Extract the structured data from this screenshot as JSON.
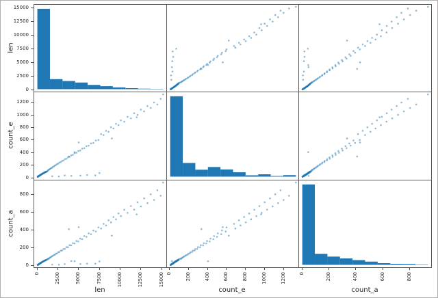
{
  "figure": {
    "background": "#ffffff",
    "outer_border_color": "#b0b0b0",
    "axis_line_color": "#595959",
    "tick_color": "#4d4d4d",
    "tick_label_color": "#262626",
    "bar_color": "#1f77b4",
    "point_color": "#1f77b4",
    "point_alpha": 0.5
  },
  "chart_data": {
    "type": "scatter_matrix",
    "diagonal": "hist",
    "variables": [
      {
        "name": "len",
        "min": -380,
        "max": 15580,
        "data_max": 15200,
        "ticks": [
          0,
          2500,
          5000,
          7500,
          10000,
          12500,
          15000
        ],
        "hist_counts": [
          945,
          118,
          96,
          78,
          50,
          35,
          21,
          12,
          6,
          4
        ]
      },
      {
        "name": "count_e",
        "min": -34,
        "max": 1364,
        "data_max": 1330,
        "ticks": [
          0,
          200,
          400,
          600,
          800,
          1000,
          1200
        ],
        "hist_counts": [
          950,
          162,
          82,
          114,
          85,
          52,
          16,
          28,
          8,
          18
        ]
      },
      {
        "name": "count_a",
        "min": -24,
        "max": 964,
        "data_max": 940,
        "ticks": [
          0,
          200,
          400,
          600,
          800
        ],
        "hist_counts": [
          955,
          130,
          98,
          76,
          56,
          38,
          20,
          12,
          11,
          5
        ]
      }
    ],
    "points": [
      [
        25,
        3,
        1
      ],
      [
        40,
        5,
        2
      ],
      [
        60,
        4,
        3
      ],
      [
        75,
        8,
        5
      ],
      [
        90,
        7,
        6
      ],
      [
        110,
        11,
        7
      ],
      [
        130,
        10,
        8
      ],
      [
        150,
        15,
        9
      ],
      [
        165,
        13,
        11
      ],
      [
        185,
        18,
        12
      ],
      [
        200,
        16,
        13
      ],
      [
        220,
        21,
        14
      ],
      [
        240,
        19,
        16
      ],
      [
        260,
        24,
        15
      ],
      [
        280,
        22,
        18
      ],
      [
        300,
        28,
        17
      ],
      [
        320,
        25,
        21
      ],
      [
        345,
        32,
        20
      ],
      [
        365,
        29,
        24
      ],
      [
        390,
        36,
        23
      ],
      [
        410,
        33,
        27
      ],
      [
        435,
        40,
        26
      ],
      [
        460,
        37,
        30
      ],
      [
        485,
        44,
        29
      ],
      [
        510,
        42,
        33
      ],
      [
        535,
        49,
        32
      ],
      [
        560,
        46,
        36
      ],
      [
        590,
        53,
        35
      ],
      [
        615,
        50,
        39
      ],
      [
        640,
        57,
        38
      ],
      [
        670,
        54,
        42
      ],
      [
        700,
        61,
        41
      ],
      [
        730,
        58,
        45
      ],
      [
        760,
        66,
        44
      ],
      [
        790,
        63,
        48
      ],
      [
        825,
        70,
        47
      ],
      [
        855,
        67,
        51
      ],
      [
        890,
        75,
        50
      ],
      [
        925,
        72,
        54
      ],
      [
        960,
        80,
        53
      ],
      [
        1000,
        77,
        58
      ],
      [
        1040,
        85,
        57
      ],
      [
        1085,
        82,
        61
      ],
      [
        1130,
        91,
        60
      ],
      [
        1180,
        88,
        65
      ],
      [
        1240,
        97,
        68
      ],
      [
        55,
        6,
        4
      ],
      [
        95,
        9,
        5
      ],
      [
        145,
        12,
        10
      ],
      [
        210,
        20,
        12
      ],
      [
        275,
        26,
        16
      ],
      [
        340,
        30,
        22
      ],
      [
        430,
        38,
        25
      ],
      [
        520,
        45,
        31
      ],
      [
        610,
        52,
        37
      ],
      [
        720,
        60,
        43
      ],
      [
        840,
        72,
        49
      ],
      [
        980,
        84,
        55
      ],
      [
        1300,
        108,
        75
      ],
      [
        1380,
        116,
        72
      ],
      [
        1460,
        124,
        82
      ],
      [
        1550,
        130,
        88
      ],
      [
        1650,
        142,
        92
      ],
      [
        1760,
        148,
        101
      ],
      [
        1870,
        162,
        106
      ],
      [
        1990,
        170,
        115
      ],
      [
        2110,
        184,
        119
      ],
      [
        2240,
        192,
        130
      ],
      [
        2380,
        207,
        134
      ],
      [
        2520,
        215,
        147
      ],
      [
        2670,
        232,
        150
      ],
      [
        2830,
        240,
        165
      ],
      [
        2990,
        258,
        167
      ],
      [
        3160,
        266,
        184
      ],
      [
        3330,
        286,
        185
      ],
      [
        3510,
        294,
        205
      ],
      [
        3700,
        316,
        204
      ],
      [
        3890,
        324,
        227
      ],
      [
        4090,
        348,
        225
      ],
      [
        4290,
        356,
        250
      ],
      [
        4500,
        382,
        247
      ],
      [
        4720,
        390,
        275
      ],
      [
        4950,
        418,
        270
      ],
      [
        5180,
        426,
        302
      ],
      [
        5420,
        456,
        296
      ],
      [
        5670,
        464,
        331
      ],
      [
        5930,
        496,
        323
      ],
      [
        6200,
        504,
        362
      ],
      [
        6480,
        540,
        352
      ],
      [
        6770,
        548,
        395
      ],
      [
        7070,
        588,
        383
      ],
      [
        7380,
        596,
        430
      ],
      [
        7700,
        690,
        417
      ],
      [
        8000,
        676,
        470
      ],
      [
        8300,
        744,
        452
      ],
      [
        8600,
        728,
        510
      ],
      [
        8900,
        800,
        487
      ],
      [
        9200,
        782,
        548
      ],
      [
        9500,
        856,
        522
      ],
      [
        9800,
        836,
        588
      ],
      [
        10100,
        912,
        558
      ],
      [
        10500,
        890,
        630
      ],
      [
        10900,
        968,
        595
      ],
      [
        11300,
        944,
        672
      ],
      [
        11700,
        1026,
        632
      ],
      [
        12100,
        1000,
        716
      ],
      [
        12500,
        1084,
        668
      ],
      [
        12900,
        1056,
        760
      ],
      [
        13300,
        1142,
        706
      ],
      [
        13700,
        1112,
        806
      ],
      [
        14100,
        1200,
        742
      ],
      [
        14500,
        1168,
        852
      ],
      [
        14900,
        1258,
        790
      ],
      [
        15200,
        1330,
        940
      ],
      [
        1800,
        12,
        6
      ],
      [
        2600,
        9,
        5
      ],
      [
        3300,
        24,
        12
      ],
      [
        4100,
        18,
        47
      ],
      [
        5200,
        22,
        13
      ],
      [
        6000,
        32,
        17
      ],
      [
        7000,
        26,
        16
      ],
      [
        7500,
        64,
        42
      ],
      [
        4500,
        400,
        45
      ],
      [
        3800,
        330,
        410
      ],
      [
        9000,
        620,
        335
      ],
      [
        5000,
        556,
        432
      ],
      [
        12000,
        962,
        578
      ]
    ]
  }
}
